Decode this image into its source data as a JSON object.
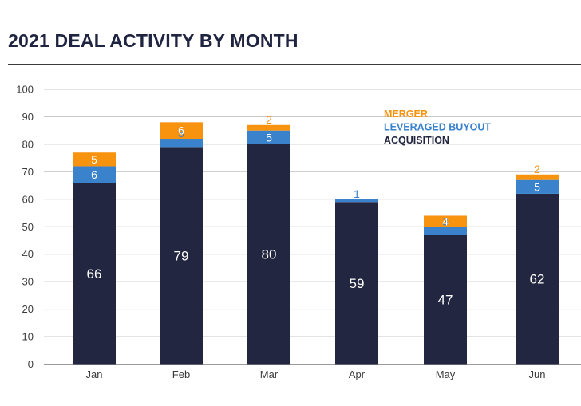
{
  "title": "2021 DEAL ACTIVITY BY MONTH",
  "colors": {
    "acquisition": "#222640",
    "leveraged_buyout": "#3b82cc",
    "merger": "#f7930f",
    "grid": "#c9c9c9",
    "inner_label": "#ffffff"
  },
  "chart_data": {
    "type": "bar",
    "stacked": true,
    "title": "2021 DEAL ACTIVITY BY MONTH",
    "categories": [
      "Jan",
      "Feb",
      "Mar",
      "Apr",
      "May",
      "Jun"
    ],
    "series": [
      {
        "name": "ACQUISITION",
        "values": [
          66,
          79,
          80,
          59,
          47,
          62
        ]
      },
      {
        "name": "LEVERAGED BUYOUT",
        "values": [
          6,
          3,
          5,
          1,
          3,
          5
        ]
      },
      {
        "name": "MERGER",
        "values": [
          5,
          6,
          2,
          0,
          4,
          2
        ]
      }
    ],
    "ylim": [
      0,
      100
    ],
    "yticks": [
      0,
      10,
      20,
      30,
      40,
      50,
      60,
      70,
      80,
      90,
      100
    ],
    "grid": true,
    "legend": {
      "placement": "top-right",
      "entries": [
        "MERGER",
        "LEVERAGED BUYOUT",
        "ACQUISITION"
      ]
    }
  }
}
